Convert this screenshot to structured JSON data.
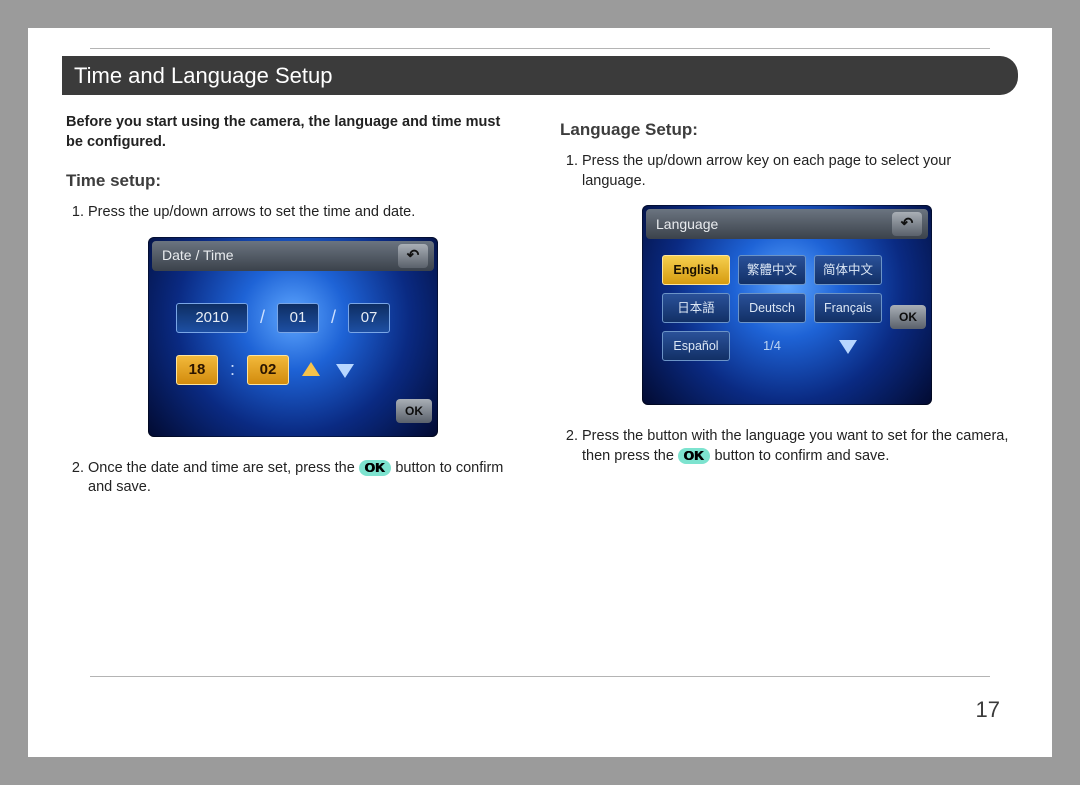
{
  "page_number": "17",
  "section_title": "Time and Language Setup",
  "left": {
    "intro": "Before you start using the camera, the language and time must be configured.",
    "subhead": "Time setup:",
    "step1": "Press the up/down arrows to set the time and date.",
    "step2_a": "Once the date and time are set, press the ",
    "step2_b": " button to confirm and save."
  },
  "right": {
    "subhead": "Language Setup:",
    "step1": "Press the up/down arrow key on each page to select your language.",
    "step2_a": "Press the button with the language you want to set for the camera, then press the ",
    "step2_b": " button to confirm and save."
  },
  "ok_label": "OK",
  "lcd_datetime": {
    "title": "Date / Time",
    "year": "2010",
    "month": "01",
    "day": "07",
    "hour": "18",
    "minute": "02",
    "ok": "OK"
  },
  "lcd_language": {
    "title": "Language",
    "options": [
      "English",
      "繁體中文",
      "简体中文",
      "日本語",
      "Deutsch",
      "Français",
      "Español"
    ],
    "selected_index": 0,
    "page_indicator": "1/4",
    "ok": "OK"
  },
  "colors": {
    "page_border": "#9b9b9b",
    "header_bg": "#3b3b3b",
    "ok_pill_bg": "#7de3cf",
    "lcd_highlight": "#f2b93b"
  }
}
